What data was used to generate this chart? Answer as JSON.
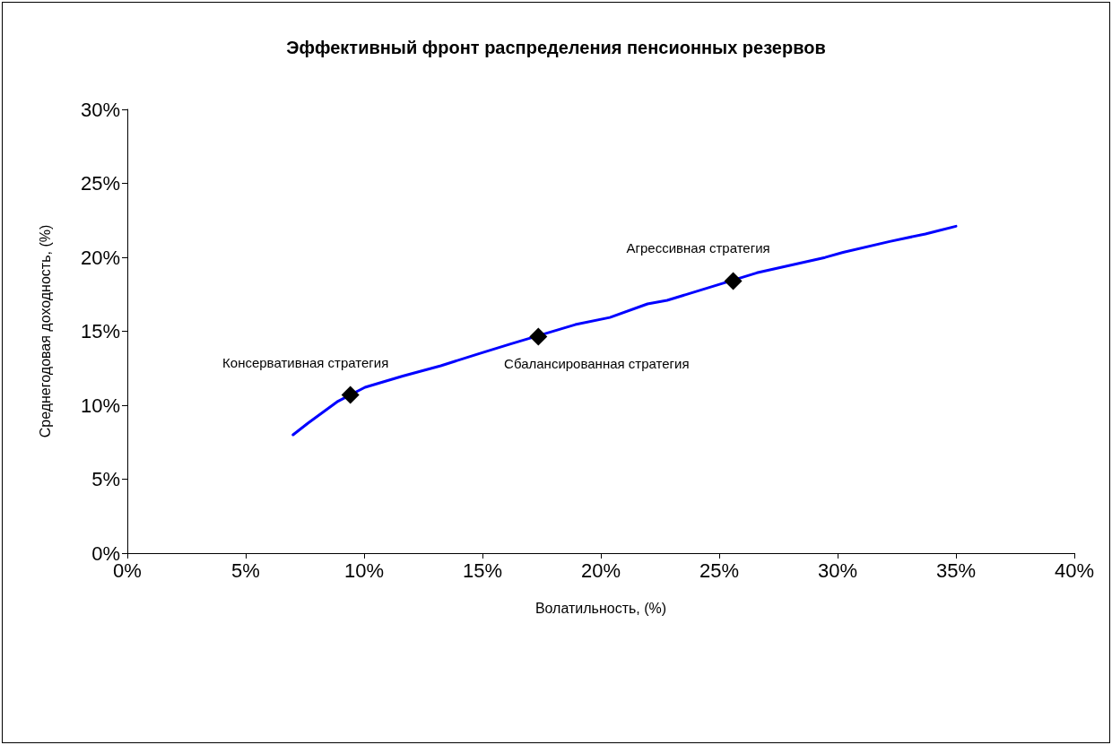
{
  "chart_data": {
    "type": "line",
    "title": "Эффективный фронт распределения пенсионных резервов",
    "xlabel": "Волатильность, (%)",
    "ylabel": "Среднегодовая доходность, (%)",
    "series": [
      {
        "type": "line",
        "color": "#0000ff",
        "marker": "none",
        "x": [
          7.0,
          7.63,
          8.86,
          10.04,
          11.63,
          13.24,
          14.84,
          16.16,
          18.92,
          20.38,
          21.97,
          22.8,
          26.59,
          29.47,
          30.23,
          32.2,
          33.71,
          35.0
        ],
        "values": [
          8.0,
          8.79,
          10.23,
          11.21,
          11.97,
          12.67,
          13.48,
          14.13,
          15.45,
          15.93,
          16.85,
          17.09,
          18.95,
          19.99,
          20.33,
          21.07,
          21.58,
          22.1
        ]
      },
      {
        "type": "scatter",
        "color": "#000000",
        "marker": "diamond",
        "x": [
          9.42,
          17.36,
          25.59
        ],
        "values": [
          10.69,
          14.64,
          18.39
        ]
      }
    ],
    "annotations": [
      {
        "text": "Консервативная стратегия",
        "x": 9.42,
        "y": 10.69
      },
      {
        "text": "Сбалансированная стратегия",
        "x": 17.36,
        "y": 14.64
      },
      {
        "text": "Агрессивная стратегия",
        "x": 25.59,
        "y": 18.39
      }
    ],
    "xlim": [
      0,
      40
    ],
    "xticks": [
      {
        "value": 0,
        "label": "0%"
      },
      {
        "value": 5,
        "label": "5%"
      },
      {
        "value": 10,
        "label": "10%"
      },
      {
        "value": 15,
        "label": "15%"
      },
      {
        "value": 20,
        "label": "20%"
      },
      {
        "value": 25,
        "label": "25%"
      },
      {
        "value": 30,
        "label": "30%"
      },
      {
        "value": 35,
        "label": "35%"
      },
      {
        "value": 40,
        "label": "40%"
      }
    ],
    "ylim": [
      0,
      30
    ],
    "yticks": [
      {
        "value": 0,
        "label": "0%"
      },
      {
        "value": 5,
        "label": "5%"
      },
      {
        "value": 10,
        "label": "10%"
      },
      {
        "value": 15,
        "label": "15%"
      },
      {
        "value": 20,
        "label": "20%"
      },
      {
        "value": 25,
        "label": "25%"
      },
      {
        "value": 30,
        "label": "30%"
      }
    ],
    "grid": false
  }
}
